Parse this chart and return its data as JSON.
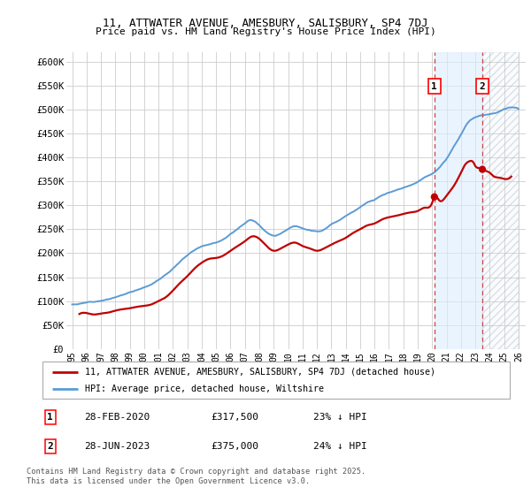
{
  "title": "11, ATTWATER AVENUE, AMESBURY, SALISBURY, SP4 7DJ",
  "subtitle": "Price paid vs. HM Land Registry's House Price Index (HPI)",
  "ylim": [
    0,
    620000
  ],
  "yticks": [
    0,
    50000,
    100000,
    150000,
    200000,
    250000,
    300000,
    350000,
    400000,
    450000,
    500000,
    550000,
    600000
  ],
  "ytick_labels": [
    "£0",
    "£50K",
    "£100K",
    "£150K",
    "£200K",
    "£250K",
    "£300K",
    "£350K",
    "£400K",
    "£450K",
    "£500K",
    "£550K",
    "£600K"
  ],
  "hpi_color": "#5b9bd5",
  "price_color": "#c00000",
  "marker1_date": 2020.16,
  "marker1_price": 317500,
  "marker1_label": "28-FEB-2020",
  "marker1_amount": "£317,500",
  "marker1_pct": "23% ↓ HPI",
  "marker2_date": 2023.49,
  "marker2_price": 375000,
  "marker2_label": "28-JUN-2023",
  "marker2_amount": "£375,000",
  "marker2_pct": "24% ↓ HPI",
  "legend_line1": "11, ATTWATER AVENUE, AMESBURY, SALISBURY, SP4 7DJ (detached house)",
  "legend_line2": "HPI: Average price, detached house, Wiltshire",
  "footer": "Contains HM Land Registry data © Crown copyright and database right 2025.\nThis data is licensed under the Open Government Licence v3.0.",
  "shade_color": "#ddeeff",
  "hatch_color": "#ddeeff",
  "background_color": "#ffffff",
  "grid_color": "#cccccc"
}
